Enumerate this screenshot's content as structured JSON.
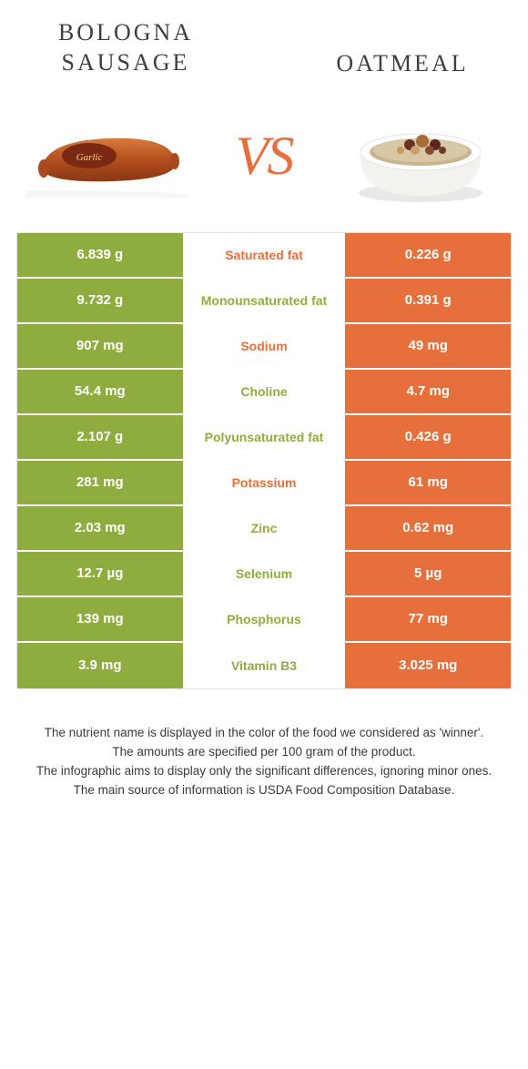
{
  "titles": {
    "left": "Bologna\nsausage",
    "right": "Oatmeal"
  },
  "vs": "VS",
  "colors": {
    "left": "#8fad3e",
    "right": "#e76f3b",
    "label_green": "#8fad3e",
    "label_orange": "#e76f3b"
  },
  "rows": [
    {
      "left": "6.839 g",
      "label": "Saturated fat",
      "label_color": "#e76f3b",
      "right": "0.226 g"
    },
    {
      "left": "9.732 g",
      "label": "Monounsaturated fat",
      "label_color": "#8fad3e",
      "right": "0.391 g"
    },
    {
      "left": "907 mg",
      "label": "Sodium",
      "label_color": "#e76f3b",
      "right": "49 mg"
    },
    {
      "left": "54.4 mg",
      "label": "Choline",
      "label_color": "#8fad3e",
      "right": "4.7 mg"
    },
    {
      "left": "2.107 g",
      "label": "Polyunsaturated fat",
      "label_color": "#8fad3e",
      "right": "0.426 g"
    },
    {
      "left": "281 mg",
      "label": "Potassium",
      "label_color": "#e76f3b",
      "right": "61 mg"
    },
    {
      "left": "2.03 mg",
      "label": "Zinc",
      "label_color": "#8fad3e",
      "right": "0.62 mg"
    },
    {
      "left": "12.7 µg",
      "label": "Selenium",
      "label_color": "#8fad3e",
      "right": "5 µg"
    },
    {
      "left": "139 mg",
      "label": "Phosphorus",
      "label_color": "#8fad3e",
      "right": "77 mg"
    },
    {
      "left": "3.9 mg",
      "label": "Vitamin B3",
      "label_color": "#8fad3e",
      "right": "3.025 mg"
    }
  ],
  "notes": [
    "The nutrient name is displayed in the color of the food we considered as 'winner'.",
    "The amounts are specified per 100 gram of the product.",
    "The infographic aims to display only the significant differences, ignoring minor ones.",
    "The main source of information is USDA Food Composition Database."
  ]
}
